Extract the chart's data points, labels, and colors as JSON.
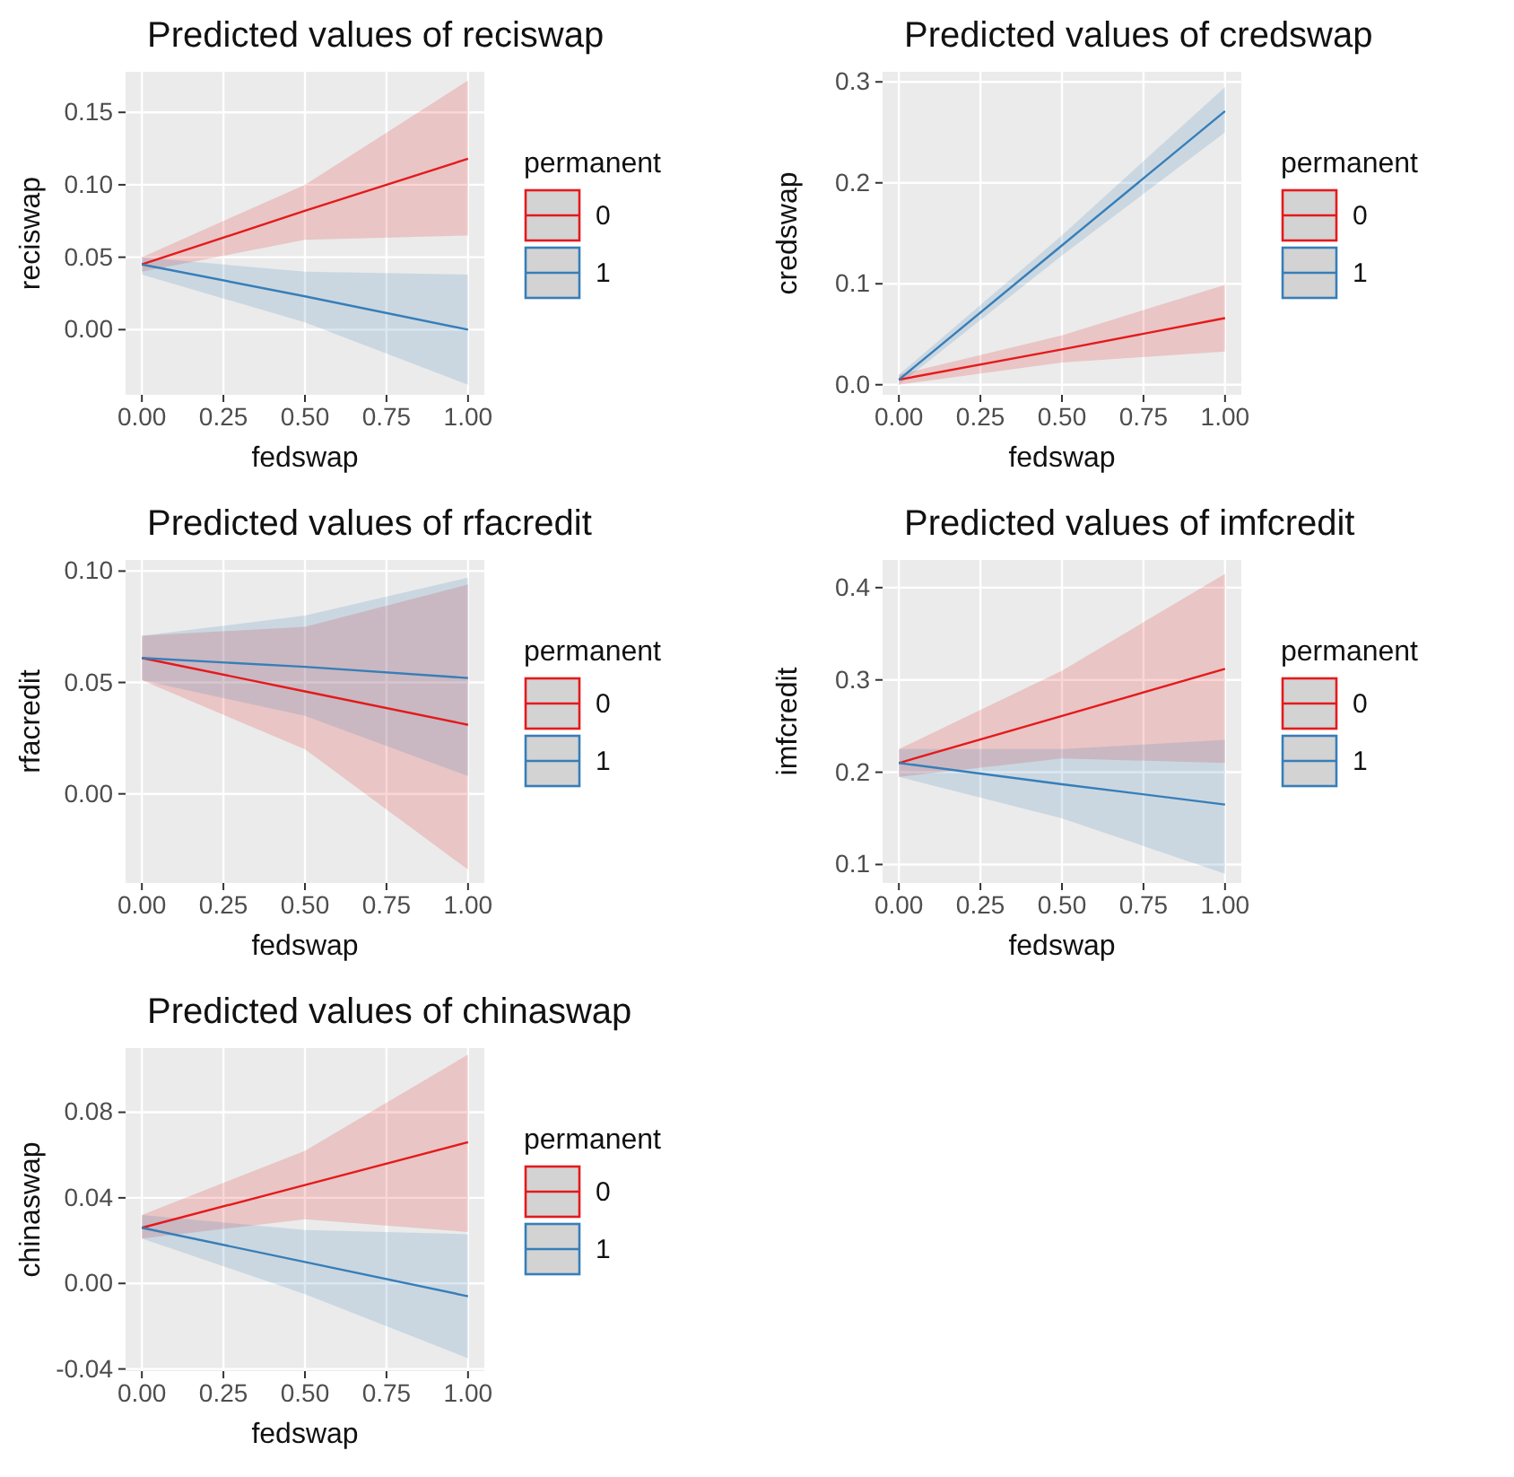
{
  "chart_data": [
    {
      "type": "line",
      "title": "Predicted values of reciswap",
      "xlabel": "fedswap",
      "ylabel": "reciswap",
      "legend_title": "permanent",
      "legend": "right",
      "grid": true,
      "x": [
        0,
        0.5,
        1
      ],
      "xlim": [
        -0.05,
        1.05
      ],
      "xticks": [
        {
          "value": 0,
          "label": "0.00"
        },
        {
          "value": 0.25,
          "label": "0.25"
        },
        {
          "value": 0.5,
          "label": "0.50"
        },
        {
          "value": 0.75,
          "label": "0.75"
        },
        {
          "value": 1,
          "label": "1.00"
        }
      ],
      "ylim": [
        -0.045,
        0.178
      ],
      "yticks": [
        {
          "value": 0,
          "label": "0.00"
        },
        {
          "value": 0.05,
          "label": "0.05"
        },
        {
          "value": 0.1,
          "label": "0.10"
        },
        {
          "value": 0.15,
          "label": "0.15"
        }
      ],
      "series": [
        {
          "name": "0",
          "color": "#e41a1c",
          "values": [
            0.045,
            0.082,
            0.118
          ],
          "lower": [
            0.04,
            0.062,
            0.065
          ],
          "upper": [
            0.05,
            0.1,
            0.172
          ]
        },
        {
          "name": "1",
          "color": "#377eb8",
          "values": [
            0.045,
            0.023,
            0
          ],
          "lower": [
            0.038,
            0.005,
            -0.038
          ],
          "upper": [
            0.05,
            0.04,
            0.038
          ]
        }
      ]
    },
    {
      "type": "line",
      "title": "Predicted values of credswap",
      "xlabel": "fedswap",
      "ylabel": "credswap",
      "legend_title": "permanent",
      "legend": "right",
      "grid": true,
      "x": [
        0,
        0.5,
        1
      ],
      "xlim": [
        -0.05,
        1.05
      ],
      "xticks": [
        {
          "value": 0,
          "label": "0.00"
        },
        {
          "value": 0.25,
          "label": "0.25"
        },
        {
          "value": 0.5,
          "label": "0.50"
        },
        {
          "value": 0.75,
          "label": "0.75"
        },
        {
          "value": 1,
          "label": "1.00"
        }
      ],
      "ylim": [
        -0.01,
        0.31
      ],
      "yticks": [
        {
          "value": 0,
          "label": "0.0"
        },
        {
          "value": 0.1,
          "label": "0.1"
        },
        {
          "value": 0.2,
          "label": "0.2"
        },
        {
          "value": 0.3,
          "label": "0.3"
        }
      ],
      "series": [
        {
          "name": "0",
          "color": "#e41a1c",
          "values": [
            0.005,
            0.035,
            0.066
          ],
          "lower": [
            0,
            0.022,
            0.033
          ],
          "upper": [
            0.01,
            0.049,
            0.099
          ]
        },
        {
          "name": "1",
          "color": "#377eb8",
          "values": [
            0.005,
            0.138,
            0.271
          ],
          "lower": [
            0,
            0.128,
            0.25
          ],
          "upper": [
            0.01,
            0.148,
            0.295
          ]
        }
      ]
    },
    {
      "type": "line",
      "title": "Predicted values of rfacredit",
      "xlabel": "fedswap",
      "ylabel": "rfacredit",
      "legend_title": "permanent",
      "legend": "right",
      "grid": true,
      "x": [
        0,
        0.5,
        1
      ],
      "xlim": [
        -0.05,
        1.05
      ],
      "xticks": [
        {
          "value": 0,
          "label": "0.00"
        },
        {
          "value": 0.25,
          "label": "0.25"
        },
        {
          "value": 0.5,
          "label": "0.50"
        },
        {
          "value": 0.75,
          "label": "0.75"
        },
        {
          "value": 1,
          "label": "1.00"
        }
      ],
      "ylim": [
        -0.04,
        0.105
      ],
      "yticks": [
        {
          "value": 0,
          "label": "0.00"
        },
        {
          "value": 0.05,
          "label": "0.05"
        },
        {
          "value": 0.1,
          "label": "0.10"
        }
      ],
      "series": [
        {
          "name": "0",
          "color": "#e41a1c",
          "values": [
            0.061,
            0.046,
            0.031
          ],
          "lower": [
            0.051,
            0.02,
            -0.034
          ],
          "upper": [
            0.071,
            0.075,
            0.094
          ]
        },
        {
          "name": "1",
          "color": "#377eb8",
          "values": [
            0.061,
            0.057,
            0.052
          ],
          "lower": [
            0.051,
            0.035,
            0.008
          ],
          "upper": [
            0.071,
            0.08,
            0.097
          ]
        }
      ]
    },
    {
      "type": "line",
      "title": "Predicted values of imfcredit",
      "xlabel": "fedswap",
      "ylabel": "imfcredit",
      "legend_title": "permanent",
      "legend": "right",
      "grid": true,
      "x": [
        0,
        0.5,
        1
      ],
      "xlim": [
        -0.05,
        1.05
      ],
      "xticks": [
        {
          "value": 0,
          "label": "0.00"
        },
        {
          "value": 0.25,
          "label": "0.25"
        },
        {
          "value": 0.5,
          "label": "0.50"
        },
        {
          "value": 0.75,
          "label": "0.75"
        },
        {
          "value": 1,
          "label": "1.00"
        }
      ],
      "ylim": [
        0.08,
        0.43
      ],
      "yticks": [
        0.1,
        0.2,
        0.3,
        0.4
      ],
      "series": [
        {
          "name": "0",
          "color": "#e41a1c",
          "values": [
            0.21,
            0.261,
            0.312
          ],
          "lower": [
            0.195,
            0.215,
            0.21
          ],
          "upper": [
            0.225,
            0.31,
            0.415
          ]
        },
        {
          "name": "1",
          "color": "#377eb8",
          "values": [
            0.21,
            0.187,
            0.165
          ],
          "lower": [
            0.195,
            0.15,
            0.09
          ],
          "upper": [
            0.225,
            0.225,
            0.235
          ]
        }
      ]
    },
    {
      "type": "line",
      "title": "Predicted values of chinaswap",
      "xlabel": "fedswap",
      "ylabel": "chinaswap",
      "legend_title": "permanent",
      "legend": "right",
      "grid": true,
      "x": [
        0,
        0.5,
        1
      ],
      "xlim": [
        -0.05,
        1.05
      ],
      "xticks": [
        {
          "value": 0,
          "label": "0.00"
        },
        {
          "value": 0.25,
          "label": "0.25"
        },
        {
          "value": 0.5,
          "label": "0.50"
        },
        {
          "value": 0.75,
          "label": "0.75"
        },
        {
          "value": 1,
          "label": "1.00"
        }
      ],
      "ylim": [
        -0.041,
        0.11
      ],
      "yticks": [
        {
          "value": -0.04,
          "label": "-0.04"
        },
        {
          "value": 0,
          "label": "0.00"
        },
        {
          "value": 0.04,
          "label": "0.04"
        },
        {
          "value": 0.08,
          "label": "0.08"
        }
      ],
      "series": [
        {
          "name": "0",
          "color": "#e41a1c",
          "values": [
            0.026,
            0.046,
            0.066
          ],
          "lower": [
            0.021,
            0.03,
            0.024
          ],
          "upper": [
            0.032,
            0.062,
            0.107
          ]
        },
        {
          "name": "1",
          "color": "#377eb8",
          "values": [
            0.026,
            0.01,
            -0.006
          ],
          "lower": [
            0.021,
            -0.005,
            -0.035
          ],
          "upper": [
            0.032,
            0.025,
            0.023
          ]
        }
      ]
    }
  ]
}
